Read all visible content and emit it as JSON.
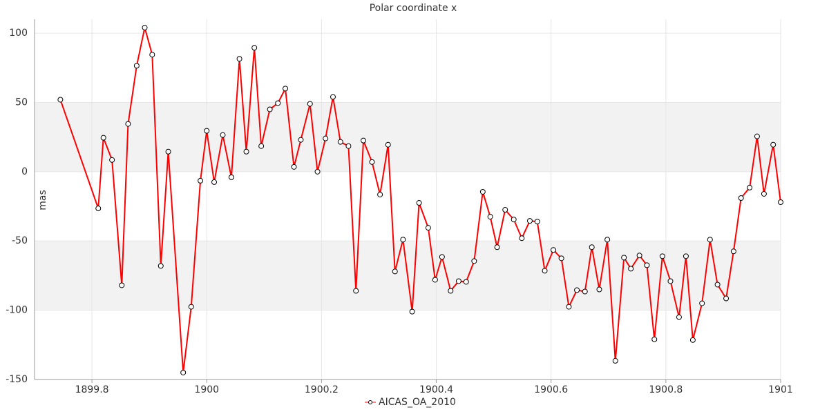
{
  "chart_data": {
    "type": "line",
    "title": "Polar coordinate x",
    "y_label": "mas",
    "x": [
      1899.745,
      1899.811,
      1899.82,
      1899.835,
      1899.852,
      1899.863,
      1899.878,
      1899.892,
      1899.905,
      1899.92,
      1899.933,
      1899.959,
      1899.973,
      1899.989,
      1900.0,
      1900.013,
      1900.028,
      1900.043,
      1900.057,
      1900.069,
      1900.083,
      1900.095,
      1900.11,
      1900.124,
      1900.137,
      1900.152,
      1900.164,
      1900.18,
      1900.193,
      1900.207,
      1900.22,
      1900.233,
      1900.247,
      1900.26,
      1900.273,
      1900.288,
      1900.302,
      1900.316,
      1900.328,
      1900.342,
      1900.358,
      1900.37,
      1900.386,
      1900.398,
      1900.41,
      1900.425,
      1900.439,
      1900.452,
      1900.466,
      1900.481,
      1900.494,
      1900.506,
      1900.52,
      1900.535,
      1900.549,
      1900.563,
      1900.576,
      1900.589,
      1900.604,
      1900.618,
      1900.631,
      1900.645,
      1900.659,
      1900.671,
      1900.684,
      1900.698,
      1900.712,
      1900.727,
      1900.739,
      1900.754,
      1900.767,
      1900.78,
      1900.794,
      1900.808,
      1900.823,
      1900.835,
      1900.847,
      1900.863,
      1900.877,
      1900.89,
      1900.905,
      1900.918,
      1900.931,
      1900.946,
      1900.959,
      1900.971,
      1900.987,
      1901.0
    ],
    "series": [
      {
        "name": "AICAS_OA_2010",
        "color": "#ff0000",
        "values": [
          52,
          -26.5,
          24.5,
          8.5,
          -82,
          34.5,
          76.5,
          104,
          84.5,
          -68,
          14.5,
          -145,
          -97.5,
          -6.5,
          29.5,
          -7.5,
          26.5,
          -4,
          81.5,
          14.5,
          89.5,
          18.5,
          45,
          49.5,
          60,
          3.5,
          23,
          49,
          0,
          24,
          54,
          21.5,
          18.5,
          -86,
          22.5,
          7,
          -16.5,
          19.5,
          -72,
          -49,
          -101,
          -22.5,
          -40.5,
          -78,
          -61.5,
          -86,
          -79,
          -79.5,
          -64.5,
          -14.5,
          -32.5,
          -54.5,
          -27.5,
          -34.5,
          -48,
          -35.5,
          -36,
          -71.5,
          -56.5,
          -62.5,
          -97.5,
          -85.5,
          -86.5,
          -54.5,
          -85,
          -49,
          -136.5,
          -62,
          -70,
          -60.5,
          -67.5,
          -121,
          -61,
          -79,
          -105,
          -61,
          -121.5,
          -95,
          -49,
          -81.5,
          -91.5,
          -57.5,
          -19,
          -11.5,
          25.5,
          -16,
          19.5,
          -22
        ]
      }
    ],
    "xlim": [
      1899.7,
      1901
    ],
    "xticks": [
      1899.8,
      1900,
      1900.2,
      1900.4,
      1900.6,
      1900.8,
      1901
    ],
    "ylim": [
      -150,
      110
    ],
    "yticks": [
      -150,
      -100,
      -50,
      0,
      50,
      100
    ],
    "grid": true,
    "alternate_grid_color": "#f2f2f2",
    "legend": "bottom"
  }
}
